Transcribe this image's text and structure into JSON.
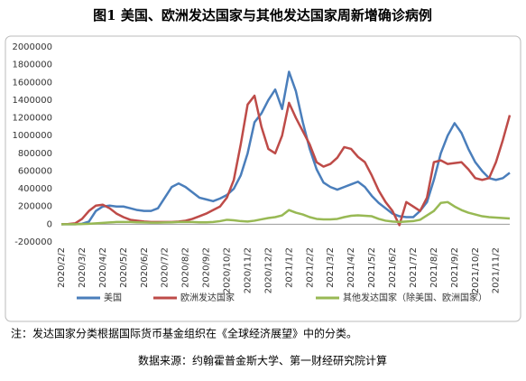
{
  "chart_data": {
    "type": "line",
    "title": "图1  美国、欧洲发达国家与其他发达国家周新增确诊病例",
    "categories": [
      "2020/2/2",
      null,
      null,
      "2020/3/2",
      null,
      null,
      "2020/4/2",
      null,
      null,
      "2020/5/2",
      null,
      null,
      "2020/6/2",
      null,
      null,
      "2020/7/2",
      null,
      null,
      "2020/8/2",
      null,
      null,
      "2020/9/2",
      null,
      null,
      "2020/10/2",
      null,
      null,
      "2020/11/2",
      null,
      null,
      "2020/12/2",
      null,
      null,
      "2021/1/2",
      null,
      null,
      "2021/2/2",
      null,
      null,
      "2021/3/2",
      null,
      null,
      "2021/4/2",
      null,
      null,
      "2021/5/2",
      null,
      null,
      "2021/6/2",
      null,
      null,
      "2021/7/2",
      null,
      null,
      "2021/8/2",
      null,
      null,
      "2021/9/2",
      null,
      null,
      "2021/10/2",
      null,
      null,
      "2021/11/2",
      null,
      null
    ],
    "series": [
      {
        "name": "美国",
        "color": "#4a7ebb",
        "values": [
          0,
          0,
          0,
          5000,
          30000,
          150000,
          200000,
          210000,
          200000,
          200000,
          180000,
          160000,
          150000,
          150000,
          180000,
          300000,
          420000,
          460000,
          420000,
          360000,
          300000,
          280000,
          260000,
          290000,
          330000,
          400000,
          550000,
          800000,
          1150000,
          1250000,
          1400000,
          1520000,
          1300000,
          1720000,
          1500000,
          1150000,
          850000,
          620000,
          470000,
          420000,
          390000,
          420000,
          450000,
          480000,
          420000,
          320000,
          240000,
          180000,
          120000,
          90000,
          80000,
          80000,
          150000,
          250000,
          500000,
          800000,
          1000000,
          1140000,
          1030000,
          850000,
          700000,
          600000,
          520000,
          500000,
          520000,
          580000
        ]
      },
      {
        "name": "欧洲发达国家",
        "color": "#be4b48",
        "values": [
          0,
          2000,
          10000,
          60000,
          150000,
          210000,
          220000,
          180000,
          120000,
          80000,
          50000,
          40000,
          30000,
          25000,
          25000,
          25000,
          25000,
          30000,
          40000,
          60000,
          90000,
          120000,
          160000,
          200000,
          300000,
          500000,
          900000,
          1350000,
          1450000,
          1100000,
          850000,
          800000,
          1000000,
          1370000,
          1200000,
          1050000,
          900000,
          700000,
          650000,
          680000,
          750000,
          870000,
          850000,
          760000,
          700000,
          550000,
          380000,
          250000,
          150000,
          -10000,
          250000,
          200000,
          150000,
          300000,
          700000,
          720000,
          680000,
          690000,
          700000,
          620000,
          520000,
          500000,
          520000,
          700000,
          950000,
          1230000
        ]
      },
      {
        "name": "其他发达国家（除美国、欧洲国家）",
        "color": "#98b954",
        "values": [
          0,
          0,
          0,
          2000,
          5000,
          10000,
          15000,
          20000,
          25000,
          25000,
          25000,
          22000,
          20000,
          18000,
          18000,
          20000,
          22000,
          25000,
          25000,
          25000,
          22000,
          22000,
          25000,
          35000,
          50000,
          45000,
          35000,
          30000,
          40000,
          55000,
          70000,
          80000,
          100000,
          160000,
          130000,
          110000,
          80000,
          60000,
          55000,
          55000,
          60000,
          80000,
          95000,
          100000,
          95000,
          90000,
          60000,
          40000,
          30000,
          25000,
          30000,
          35000,
          50000,
          100000,
          150000,
          240000,
          250000,
          200000,
          160000,
          130000,
          110000,
          90000,
          80000,
          75000,
          70000,
          65000
        ]
      }
    ],
    "ylim": [
      -200000,
      2000000
    ],
    "yticks": [
      -200000,
      0,
      200000,
      400000,
      600000,
      800000,
      1000000,
      1200000,
      1400000,
      1600000,
      1800000,
      2000000
    ],
    "grid": false,
    "legend": "bottom"
  },
  "note": "注：发达国家分类根据国际货币基金组织在《全球经济展望》中的分类。",
  "source": "数据来源：约翰霍普金斯大学、第一财经研究院计算"
}
